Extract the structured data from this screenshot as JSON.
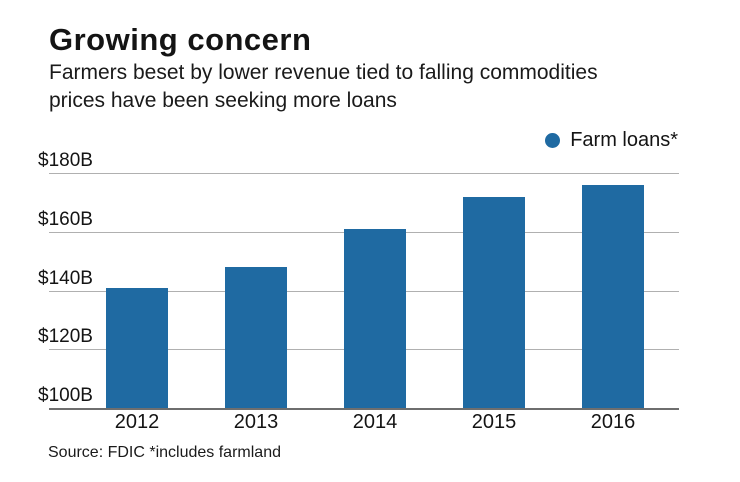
{
  "header": {
    "title": "Growing concern",
    "subtitle_lines": [
      "Farmers beset by lower revenue tied to falling commodities",
      "prices have been seeking more loans"
    ]
  },
  "legend": {
    "label": "Farm loans*",
    "marker_color": "#1f6aa2"
  },
  "source_note": "Source: FDIC *includes farmland",
  "chart_data": {
    "type": "bar",
    "title": "Growing concern",
    "categories": [
      "2012",
      "2013",
      "2014",
      "2015",
      "2016"
    ],
    "series": [
      {
        "name": "Farm loans*",
        "values": [
          141,
          148,
          161,
          172,
          176
        ]
      }
    ],
    "values_unit": "billion USD",
    "xlabel": "",
    "ylabel": "",
    "ylim": [
      100,
      180
    ],
    "yticks": [
      100,
      120,
      140,
      160,
      180
    ],
    "ytick_labels": [
      "$100B",
      "$120B",
      "$140B",
      "$160B",
      "$180B"
    ],
    "grid": "horizontal",
    "legend_position": "top-right",
    "bar_color": "#1f6aa2",
    "gridline_color": "#b0b0b0",
    "axis_color": "#6e6e6e",
    "text_color": "#141414"
  }
}
